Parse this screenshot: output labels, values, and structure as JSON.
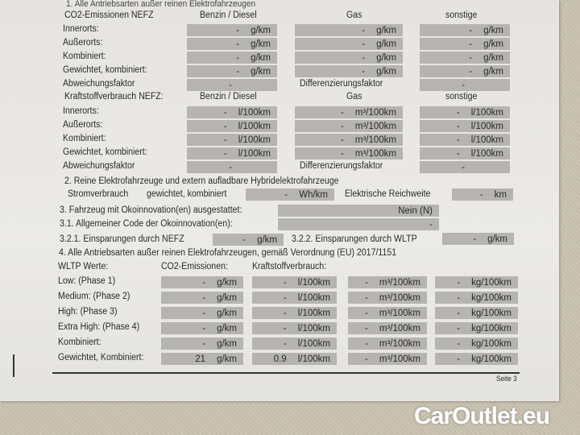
{
  "section1_title": "1. Alle Antriebsarten außer reinen Elektrofahrzeugen",
  "co2": {
    "header": "CO2-Emissionen NEFZ",
    "columns": [
      "Benzin / Diesel",
      "Gas",
      "sonstige"
    ],
    "rows": [
      {
        "label": "Innerorts:",
        "values": [
          [
            "-",
            "g/km"
          ],
          [
            "-",
            "g/km"
          ],
          [
            "-",
            "g/km"
          ]
        ]
      },
      {
        "label": "Außerorts:",
        "values": [
          [
            "-",
            "g/km"
          ],
          [
            "-",
            "g/km"
          ],
          [
            "-",
            "g/km"
          ]
        ]
      },
      {
        "label": "Kombiniert:",
        "values": [
          [
            "-",
            "g/km"
          ],
          [
            "-",
            "g/km"
          ],
          [
            "-",
            "g/km"
          ]
        ]
      },
      {
        "label": "Gewichtet, kombiniert:",
        "values": [
          [
            "-",
            "g/km"
          ],
          [
            "-",
            "g/km"
          ],
          [
            "-",
            "g/km"
          ]
        ]
      }
    ],
    "abweichung_label": "Abweichungsfaktor",
    "abweichung_value": "-",
    "differenz_label": "Differenzierungsfaktor",
    "differenz_value": "-"
  },
  "fuel": {
    "header": "Kraftstoffverbrauch NEFZ:",
    "columns": [
      "Benzin / Diesel",
      "Gas",
      "sonstige"
    ],
    "rows": [
      {
        "label": "Innerorts:",
        "values": [
          [
            "-",
            "l/100km"
          ],
          [
            "-",
            "m³/100km"
          ],
          [
            "-",
            "l/100km"
          ]
        ]
      },
      {
        "label": "Außerorts:",
        "values": [
          [
            "-",
            "l/100km"
          ],
          [
            "-",
            "m³/100km"
          ],
          [
            "-",
            "l/100km"
          ]
        ]
      },
      {
        "label": "Kombiniert:",
        "values": [
          [
            "-",
            "l/100km"
          ],
          [
            "-",
            "m³/100km"
          ],
          [
            "-",
            "l/100km"
          ]
        ]
      },
      {
        "label": "Gewichtet, kombiniert:",
        "values": [
          [
            "-",
            "l/100km"
          ],
          [
            "-",
            "m³/100km"
          ],
          [
            "-",
            "l/100km"
          ]
        ]
      }
    ],
    "abweichung_label": "Abweichungsfaktor",
    "abweichung_value": "-",
    "differenz_label": "Differenzierungsfaktor",
    "differenz_value": "-"
  },
  "section2": {
    "title": "2. Reine Elektrofahrzeuge und extern aufladbare Hybridelektrofahrzeuge",
    "strom_label": "Stromverbrauch",
    "strom_sub": "gewichtet, kombiniert",
    "strom_value": "-",
    "strom_unit": "Wh/km",
    "reichweite_label": "Elektrische Reichweite",
    "reichweite_value": "-",
    "reichweite_unit": "km"
  },
  "section3": {
    "oeko_label": "3. Fahrzeug mit Ökoinnovation(en) ausgestattet:",
    "oeko_value": "Nein (N)",
    "code_label": "3.1. Allgemeiner Code der Ökoinnovation(en):",
    "code_value": "-",
    "nefz_label": "3.2.1. Einsparungen durch NEFZ",
    "nefz_value": "-",
    "nefz_unit": "g/km",
    "wltp_label": "3.2.2. Einsparungen durch WLTP",
    "wltp_value": "-",
    "wltp_unit": "g/km"
  },
  "section4": {
    "title": "4. Alle Antriebsarten außer reinen Elektrofahrzeugen, gemäß Verordnung (EU) 2017/1151",
    "header_label": "WLTP Werte:",
    "header_co2": "CO2-Emissionen:",
    "header_fuel": "Kraftstoffverbrauch:",
    "rows": [
      {
        "label": "Low: (Phase 1)",
        "values": [
          [
            "-",
            "g/km"
          ],
          [
            "-",
            "l/100km"
          ],
          [
            "-",
            "m³/100km"
          ],
          [
            "-",
            "kg/100km"
          ]
        ]
      },
      {
        "label": "Medium: (Phase 2)",
        "values": [
          [
            "-",
            "g/km"
          ],
          [
            "-",
            "l/100km"
          ],
          [
            "-",
            "m³/100km"
          ],
          [
            "-",
            "kg/100km"
          ]
        ]
      },
      {
        "label": "High: (Phase 3)",
        "values": [
          [
            "-",
            "g/km"
          ],
          [
            "-",
            "l/100km"
          ],
          [
            "-",
            "m³/100km"
          ],
          [
            "-",
            "kg/100km"
          ]
        ]
      },
      {
        "label": "Extra High: (Phase 4)",
        "values": [
          [
            "-",
            "g/km"
          ],
          [
            "-",
            "l/100km"
          ],
          [
            "-",
            "m³/100km"
          ],
          [
            "-",
            "kg/100km"
          ]
        ]
      },
      {
        "label": "Kombiniert:",
        "values": [
          [
            "-",
            "g/km"
          ],
          [
            "-",
            "l/100km"
          ],
          [
            "-",
            "m³/100km"
          ],
          [
            "-",
            "kg/100km"
          ]
        ]
      },
      {
        "label": "Gewichtet, Kombiniert:",
        "values": [
          [
            "21",
            "g/km"
          ],
          [
            "0.9",
            "l/100km"
          ],
          [
            "-",
            "m³/100km"
          ],
          [
            "-",
            "kg/100km"
          ]
        ]
      }
    ]
  },
  "page_label": "Seite 3",
  "watermark": "CarOutlet.eu"
}
